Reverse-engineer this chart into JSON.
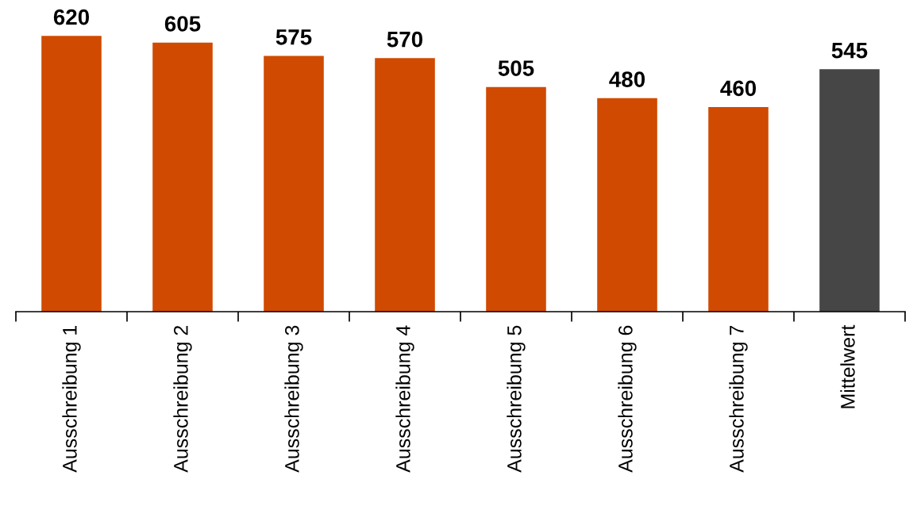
{
  "chart_data": {
    "type": "bar",
    "categories": [
      "Ausschreibung 1",
      "Ausschreibung 2",
      "Ausschreibung 3",
      "Ausschreibung 4",
      "Ausschreibung 5",
      "Ausschreibung 6",
      "Ausschreibung 7",
      "Mittelwert"
    ],
    "values": [
      620,
      605,
      575,
      570,
      505,
      480,
      460,
      545
    ],
    "colors": [
      "#d04a02",
      "#d04a02",
      "#d04a02",
      "#d04a02",
      "#d04a02",
      "#d04a02",
      "#d04a02",
      "#464646"
    ],
    "data_labels": true
  }
}
